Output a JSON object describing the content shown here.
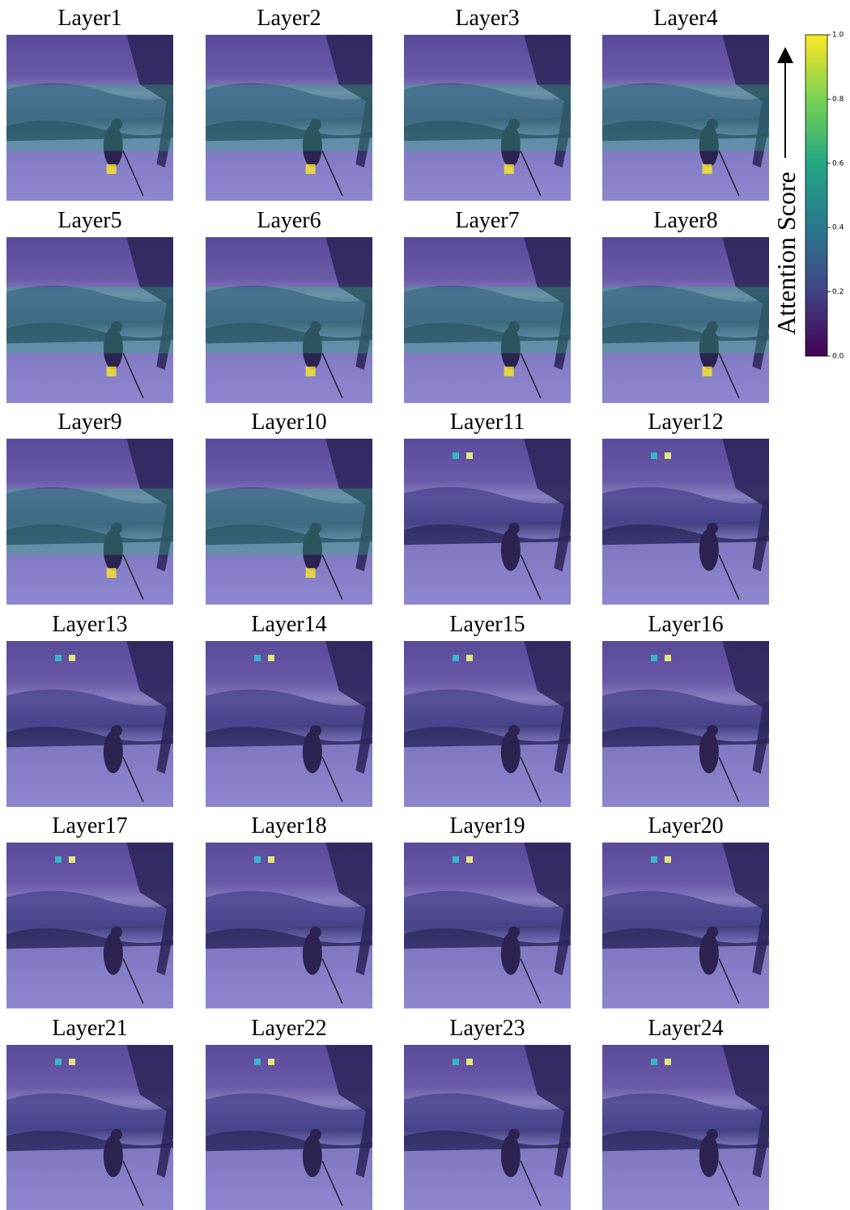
{
  "figure": {
    "panels": [
      {
        "title": "Layer1"
      },
      {
        "title": "Layer2"
      },
      {
        "title": "Layer3"
      },
      {
        "title": "Layer4"
      },
      {
        "title": "Layer5"
      },
      {
        "title": "Layer6"
      },
      {
        "title": "Layer7"
      },
      {
        "title": "Layer8"
      },
      {
        "title": "Layer9"
      },
      {
        "title": "Layer10"
      },
      {
        "title": "Layer11"
      },
      {
        "title": "Layer12"
      },
      {
        "title": "Layer13"
      },
      {
        "title": "Layer14"
      },
      {
        "title": "Layer15"
      },
      {
        "title": "Layer16"
      },
      {
        "title": "Layer17"
      },
      {
        "title": "Layer18"
      },
      {
        "title": "Layer19"
      },
      {
        "title": "Layer20"
      },
      {
        "title": "Layer21"
      },
      {
        "title": "Layer22"
      },
      {
        "title": "Layer23"
      },
      {
        "title": "Layer24"
      }
    ],
    "colorbar": {
      "label": "Attention Score",
      "range": [
        0,
        1
      ],
      "ticks": [
        {
          "value": 0,
          "label": "0.0"
        },
        {
          "value": 0.2,
          "label": "0.2"
        },
        {
          "value": 0.4,
          "label": "0.4"
        },
        {
          "value": 0.6,
          "label": "0.6"
        },
        {
          "value": 0.8,
          "label": "0.8"
        },
        {
          "value": 1,
          "label": "1.0"
        }
      ]
    }
  }
}
